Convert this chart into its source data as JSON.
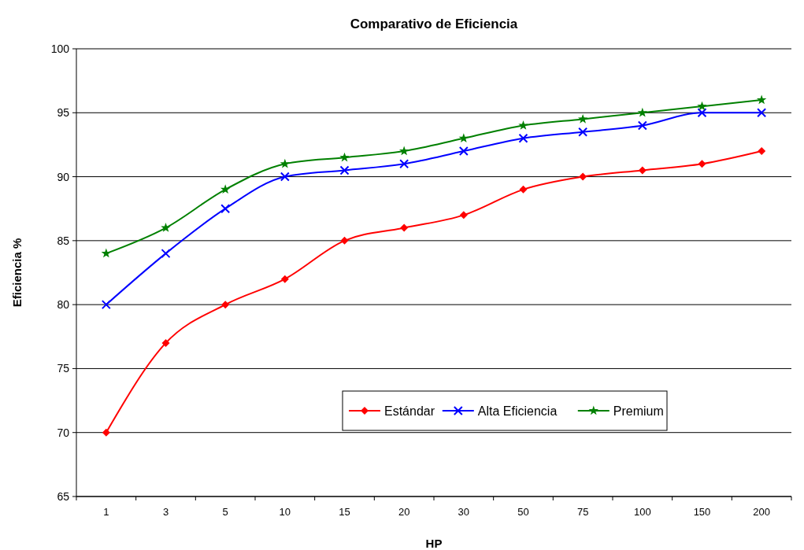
{
  "chart_data": {
    "type": "line",
    "title": "Comparativo de Eficiencia",
    "xlabel": "HP",
    "ylabel": "Eficiencia %",
    "categories": [
      "1",
      "3",
      "5",
      "10",
      "15",
      "20",
      "30",
      "50",
      "75",
      "100",
      "150",
      "200"
    ],
    "series": [
      {
        "name": "Estándar",
        "color": "#ff0000",
        "marker": "diamond",
        "values": [
          70,
          77,
          80,
          82,
          85,
          86,
          87,
          89,
          90,
          90.5,
          91,
          92
        ]
      },
      {
        "name": "Alta Eficiencia",
        "color": "#0000ff",
        "marker": "cross",
        "values": [
          80,
          84,
          87.5,
          90,
          90.5,
          91,
          92,
          93,
          93.5,
          94,
          95,
          95
        ]
      },
      {
        "name": "Premium",
        "color": "#008000",
        "marker": "star",
        "values": [
          84,
          86,
          89,
          91,
          91.5,
          92,
          93,
          94,
          94.5,
          95,
          95.5,
          96
        ]
      }
    ],
    "ylim": [
      65,
      100
    ],
    "yticks": [
      65,
      70,
      75,
      80,
      85,
      90,
      95,
      100
    ],
    "grid": "y",
    "legend": "bottom",
    "line_style": "solid"
  }
}
